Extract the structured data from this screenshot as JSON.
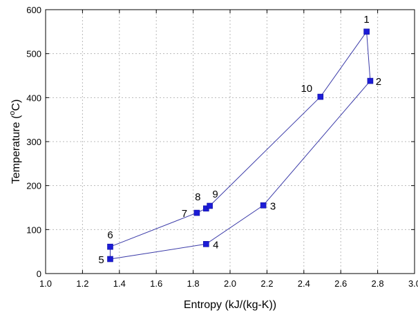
{
  "chart_data": {
    "type": "scatter",
    "title": "",
    "xlabel": "Entropy (kJ/(kg-K))",
    "ylabel_main": "Temperature (",
    "ylabel_sup": "o",
    "ylabel_tail": "C)",
    "xlim": [
      1.0,
      3.0
    ],
    "ylim": [
      0,
      600
    ],
    "x_ticks": [
      1.0,
      1.2,
      1.4,
      1.6,
      1.8,
      2.0,
      2.2,
      2.4,
      2.6,
      2.8,
      3.0
    ],
    "x_tick_labels": [
      "1.0",
      "1.2",
      "1.4",
      "1.6",
      "1.8",
      "2.0",
      "2.2",
      "2.4",
      "2.6",
      "2.8",
      "3.0"
    ],
    "y_ticks": [
      0,
      100,
      200,
      300,
      400,
      500,
      600
    ],
    "y_tick_labels": [
      "0",
      "100",
      "200",
      "300",
      "400",
      "500",
      "600"
    ],
    "grid": true,
    "legend": "none",
    "colors": {
      "marker": "#1c1cd6",
      "line": "#3a3aa8",
      "grid": "#b8b8b8"
    },
    "points": [
      {
        "label": "1",
        "x": 2.74,
        "y": 550
      },
      {
        "label": "2",
        "x": 2.76,
        "y": 438
      },
      {
        "label": "3",
        "x": 2.18,
        "y": 155
      },
      {
        "label": "4",
        "x": 1.87,
        "y": 67
      },
      {
        "label": "5",
        "x": 1.35,
        "y": 33
      },
      {
        "label": "6",
        "x": 1.35,
        "y": 61
      },
      {
        "label": "7",
        "x": 1.82,
        "y": 138
      },
      {
        "label": "8",
        "x": 1.87,
        "y": 148
      },
      {
        "label": "9",
        "x": 1.89,
        "y": 154
      },
      {
        "label": "10",
        "x": 2.49,
        "y": 402
      }
    ],
    "path_order": [
      "1",
      "2",
      "3",
      "4",
      "5",
      "6",
      "7",
      "8",
      "9",
      "10",
      "1"
    ]
  }
}
